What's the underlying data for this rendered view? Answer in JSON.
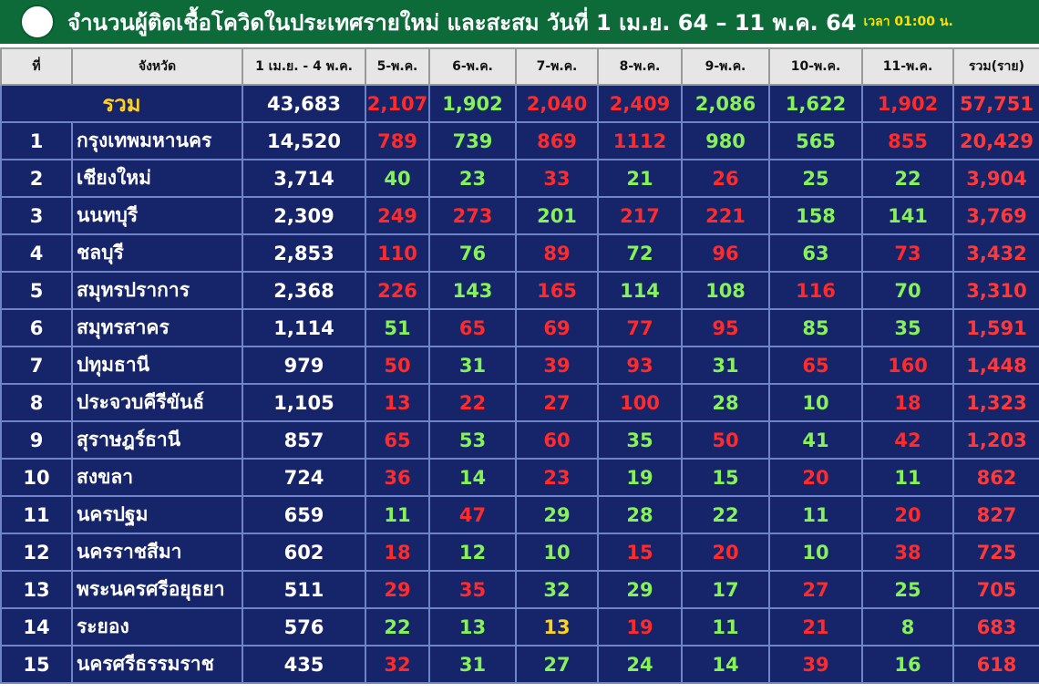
{
  "header": {
    "title": "จำนวนผู้ติดเชื้อโควิดในประเทศรายใหม่ และสะสม วันที่ 1 เม.ย. 64 – 11 พ.ค. 64",
    "time": "เวลา 01:00 น."
  },
  "table": {
    "columns": [
      "ที่",
      "จังหวัด",
      "1 เม.ย. - 4 พ.ค.",
      "5-พ.ค.",
      "6-พ.ค.",
      "7-พ.ค.",
      "8-พ.ค.",
      "9-พ.ค.",
      "10-พ.ค.",
      "11-พ.ค.",
      "รวม(ราย)"
    ],
    "palette": {
      "up": "#ff2b2b",
      "down": "#86f25a",
      "same": "#ffd21f"
    },
    "total": {
      "label": "รวม",
      "values": [
        "43,683",
        "2,107",
        "1,902",
        "2,040",
        "2,409",
        "2,086",
        "1,622",
        "1,902",
        "57,751"
      ],
      "trend": [
        "up",
        "down",
        "up",
        "up",
        "down",
        "down",
        "up"
      ]
    },
    "rows": [
      {
        "cells": [
          "1",
          "กรุงเทพมหานคร",
          "14,520",
          "789",
          "739",
          "869",
          "1112",
          "980",
          "565",
          "855",
          "20,429"
        ],
        "trend": [
          "up",
          "down",
          "up",
          "up",
          "down",
          "down",
          "up"
        ]
      },
      {
        "cells": [
          "2",
          "เชียงใหม่",
          "3,714",
          "40",
          "23",
          "33",
          "21",
          "26",
          "25",
          "22",
          "3,904"
        ],
        "trend": [
          "down",
          "down",
          "up",
          "down",
          "up",
          "down",
          "down"
        ]
      },
      {
        "cells": [
          "3",
          "นนทบุรี",
          "2,309",
          "249",
          "273",
          "201",
          "217",
          "221",
          "158",
          "141",
          "3,769"
        ],
        "trend": [
          "up",
          "up",
          "down",
          "up",
          "up",
          "down",
          "down"
        ]
      },
      {
        "cells": [
          "4",
          "ชลบุรี",
          "2,853",
          "110",
          "76",
          "89",
          "72",
          "96",
          "63",
          "73",
          "3,432"
        ],
        "trend": [
          "up",
          "down",
          "up",
          "down",
          "up",
          "down",
          "up"
        ]
      },
      {
        "cells": [
          "5",
          "สมุทรปราการ",
          "2,368",
          "226",
          "143",
          "165",
          "114",
          "108",
          "116",
          "70",
          "3,310"
        ],
        "trend": [
          "up",
          "down",
          "up",
          "down",
          "down",
          "up",
          "down"
        ]
      },
      {
        "cells": [
          "6",
          "สมุทรสาคร",
          "1,114",
          "51",
          "65",
          "69",
          "77",
          "95",
          "85",
          "35",
          "1,591"
        ],
        "trend": [
          "down",
          "up",
          "up",
          "up",
          "up",
          "down",
          "down"
        ]
      },
      {
        "cells": [
          "7",
          "ปทุมธานี",
          "979",
          "50",
          "31",
          "39",
          "93",
          "31",
          "65",
          "160",
          "1,448"
        ],
        "trend": [
          "up",
          "down",
          "up",
          "up",
          "down",
          "up",
          "up"
        ]
      },
      {
        "cells": [
          "8",
          "ประจวบคีรีขันธ์",
          "1,105",
          "13",
          "22",
          "27",
          "100",
          "28",
          "10",
          "18",
          "1,323"
        ],
        "trend": [
          "up",
          "up",
          "up",
          "up",
          "down",
          "down",
          "up"
        ]
      },
      {
        "cells": [
          "9",
          "สุราษฎร์ธานี",
          "857",
          "65",
          "53",
          "60",
          "35",
          "50",
          "41",
          "42",
          "1,203"
        ],
        "trend": [
          "up",
          "down",
          "up",
          "down",
          "up",
          "down",
          "up"
        ]
      },
      {
        "cells": [
          "10",
          "สงขลา",
          "724",
          "36",
          "14",
          "23",
          "19",
          "15",
          "20",
          "11",
          "862"
        ],
        "trend": [
          "up",
          "down",
          "up",
          "down",
          "down",
          "up",
          "down"
        ]
      },
      {
        "cells": [
          "11",
          "นครปฐม",
          "659",
          "11",
          "47",
          "29",
          "28",
          "22",
          "11",
          "20",
          "827"
        ],
        "trend": [
          "down",
          "up",
          "down",
          "down",
          "down",
          "down",
          "up"
        ]
      },
      {
        "cells": [
          "12",
          "นครราชสีมา",
          "602",
          "18",
          "12",
          "10",
          "15",
          "20",
          "10",
          "38",
          "725"
        ],
        "trend": [
          "up",
          "down",
          "down",
          "up",
          "up",
          "down",
          "up"
        ]
      },
      {
        "cells": [
          "13",
          "พระนครศรีอยุธยา",
          "511",
          "29",
          "35",
          "32",
          "29",
          "17",
          "27",
          "25",
          "705"
        ],
        "trend": [
          "up",
          "up",
          "down",
          "down",
          "down",
          "up",
          "down"
        ]
      },
      {
        "cells": [
          "14",
          "ระยอง",
          "576",
          "22",
          "13",
          "13",
          "19",
          "11",
          "21",
          "8",
          "683"
        ],
        "trend": [
          "down",
          "down",
          "same",
          "up",
          "down",
          "up",
          "down"
        ]
      },
      {
        "cells": [
          "15",
          "นครศรีธรรมราช",
          "435",
          "32",
          "31",
          "27",
          "24",
          "14",
          "39",
          "16",
          "618"
        ],
        "trend": [
          "up",
          "down",
          "down",
          "down",
          "down",
          "up",
          "down"
        ]
      }
    ]
  }
}
